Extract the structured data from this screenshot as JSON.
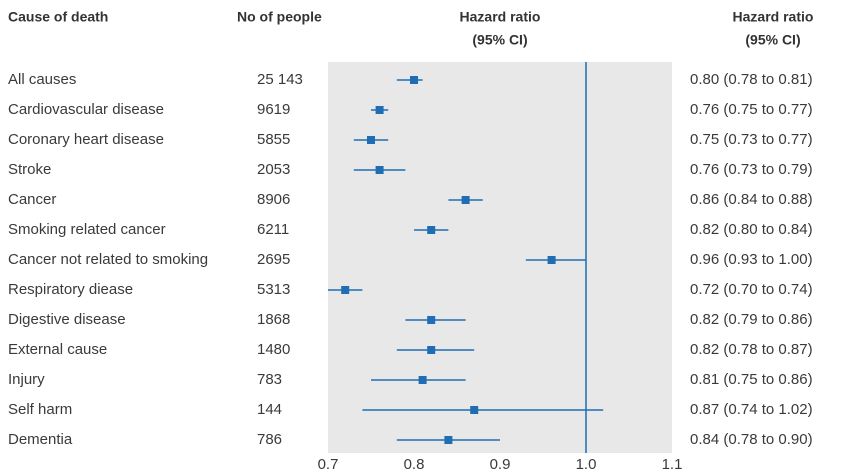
{
  "chart_data": {
    "type": "forest",
    "headers": {
      "category": "Cause of death",
      "count": "No of people",
      "plot": [
        "Hazard ratio",
        "(95% CI)"
      ],
      "ci": [
        "Hazard ratio",
        "(95% CI)"
      ]
    },
    "categories": [
      "All causes",
      "Cardiovascular disease",
      "Coronary heart disease",
      "Stroke",
      "Cancer",
      "Smoking related cancer",
      "Cancer not related to smoking",
      "Respiratory diease",
      "Digestive disease",
      "External cause",
      "Injury",
      "Self harm",
      "Dementia"
    ],
    "counts": [
      {
        "value": 25143,
        "label": "25 143"
      },
      9619,
      5855,
      2053,
      8906,
      6211,
      2695,
      5313,
      1868,
      1480,
      783,
      144,
      786
    ],
    "values": [
      0.8,
      0.76,
      0.75,
      0.76,
      0.86,
      0.82,
      0.96,
      0.72,
      0.82,
      0.82,
      0.81,
      0.87,
      0.84
    ],
    "lower": [
      0.78,
      0.75,
      0.73,
      0.73,
      0.84,
      0.8,
      0.93,
      0.7,
      0.79,
      0.78,
      0.75,
      0.74,
      0.78
    ],
    "upper": [
      0.81,
      0.77,
      0.77,
      0.79,
      0.88,
      0.84,
      1.0,
      0.74,
      0.86,
      0.87,
      0.86,
      1.02,
      0.9
    ],
    "ci_labels": [
      "0.80 (0.78 to 0.81)",
      "0.76 (0.75 to 0.77)",
      "0.75 (0.73 to 0.77)",
      "0.76 (0.73 to 0.79)",
      "0.86 (0.84 to 0.88)",
      "0.82 (0.80 to 0.84)",
      "0.96 (0.93 to 1.00)",
      "0.72 (0.70 to 0.74)",
      "0.82 (0.79 to 0.86)",
      "0.82 (0.78 to 0.87)",
      "0.81 (0.75 to 0.86)",
      "0.87 (0.74 to 1.02)",
      "0.84 (0.78 to 0.90)"
    ],
    "color": "#1f6db3",
    "panel_color": "#e8e8e8",
    "reference_line": 1,
    "xlim": [
      0.7,
      1.1
    ],
    "xticks": [
      0.7,
      0.8,
      0.9,
      {
        "value": 1,
        "label": "1.0"
      },
      1.1
    ]
  }
}
